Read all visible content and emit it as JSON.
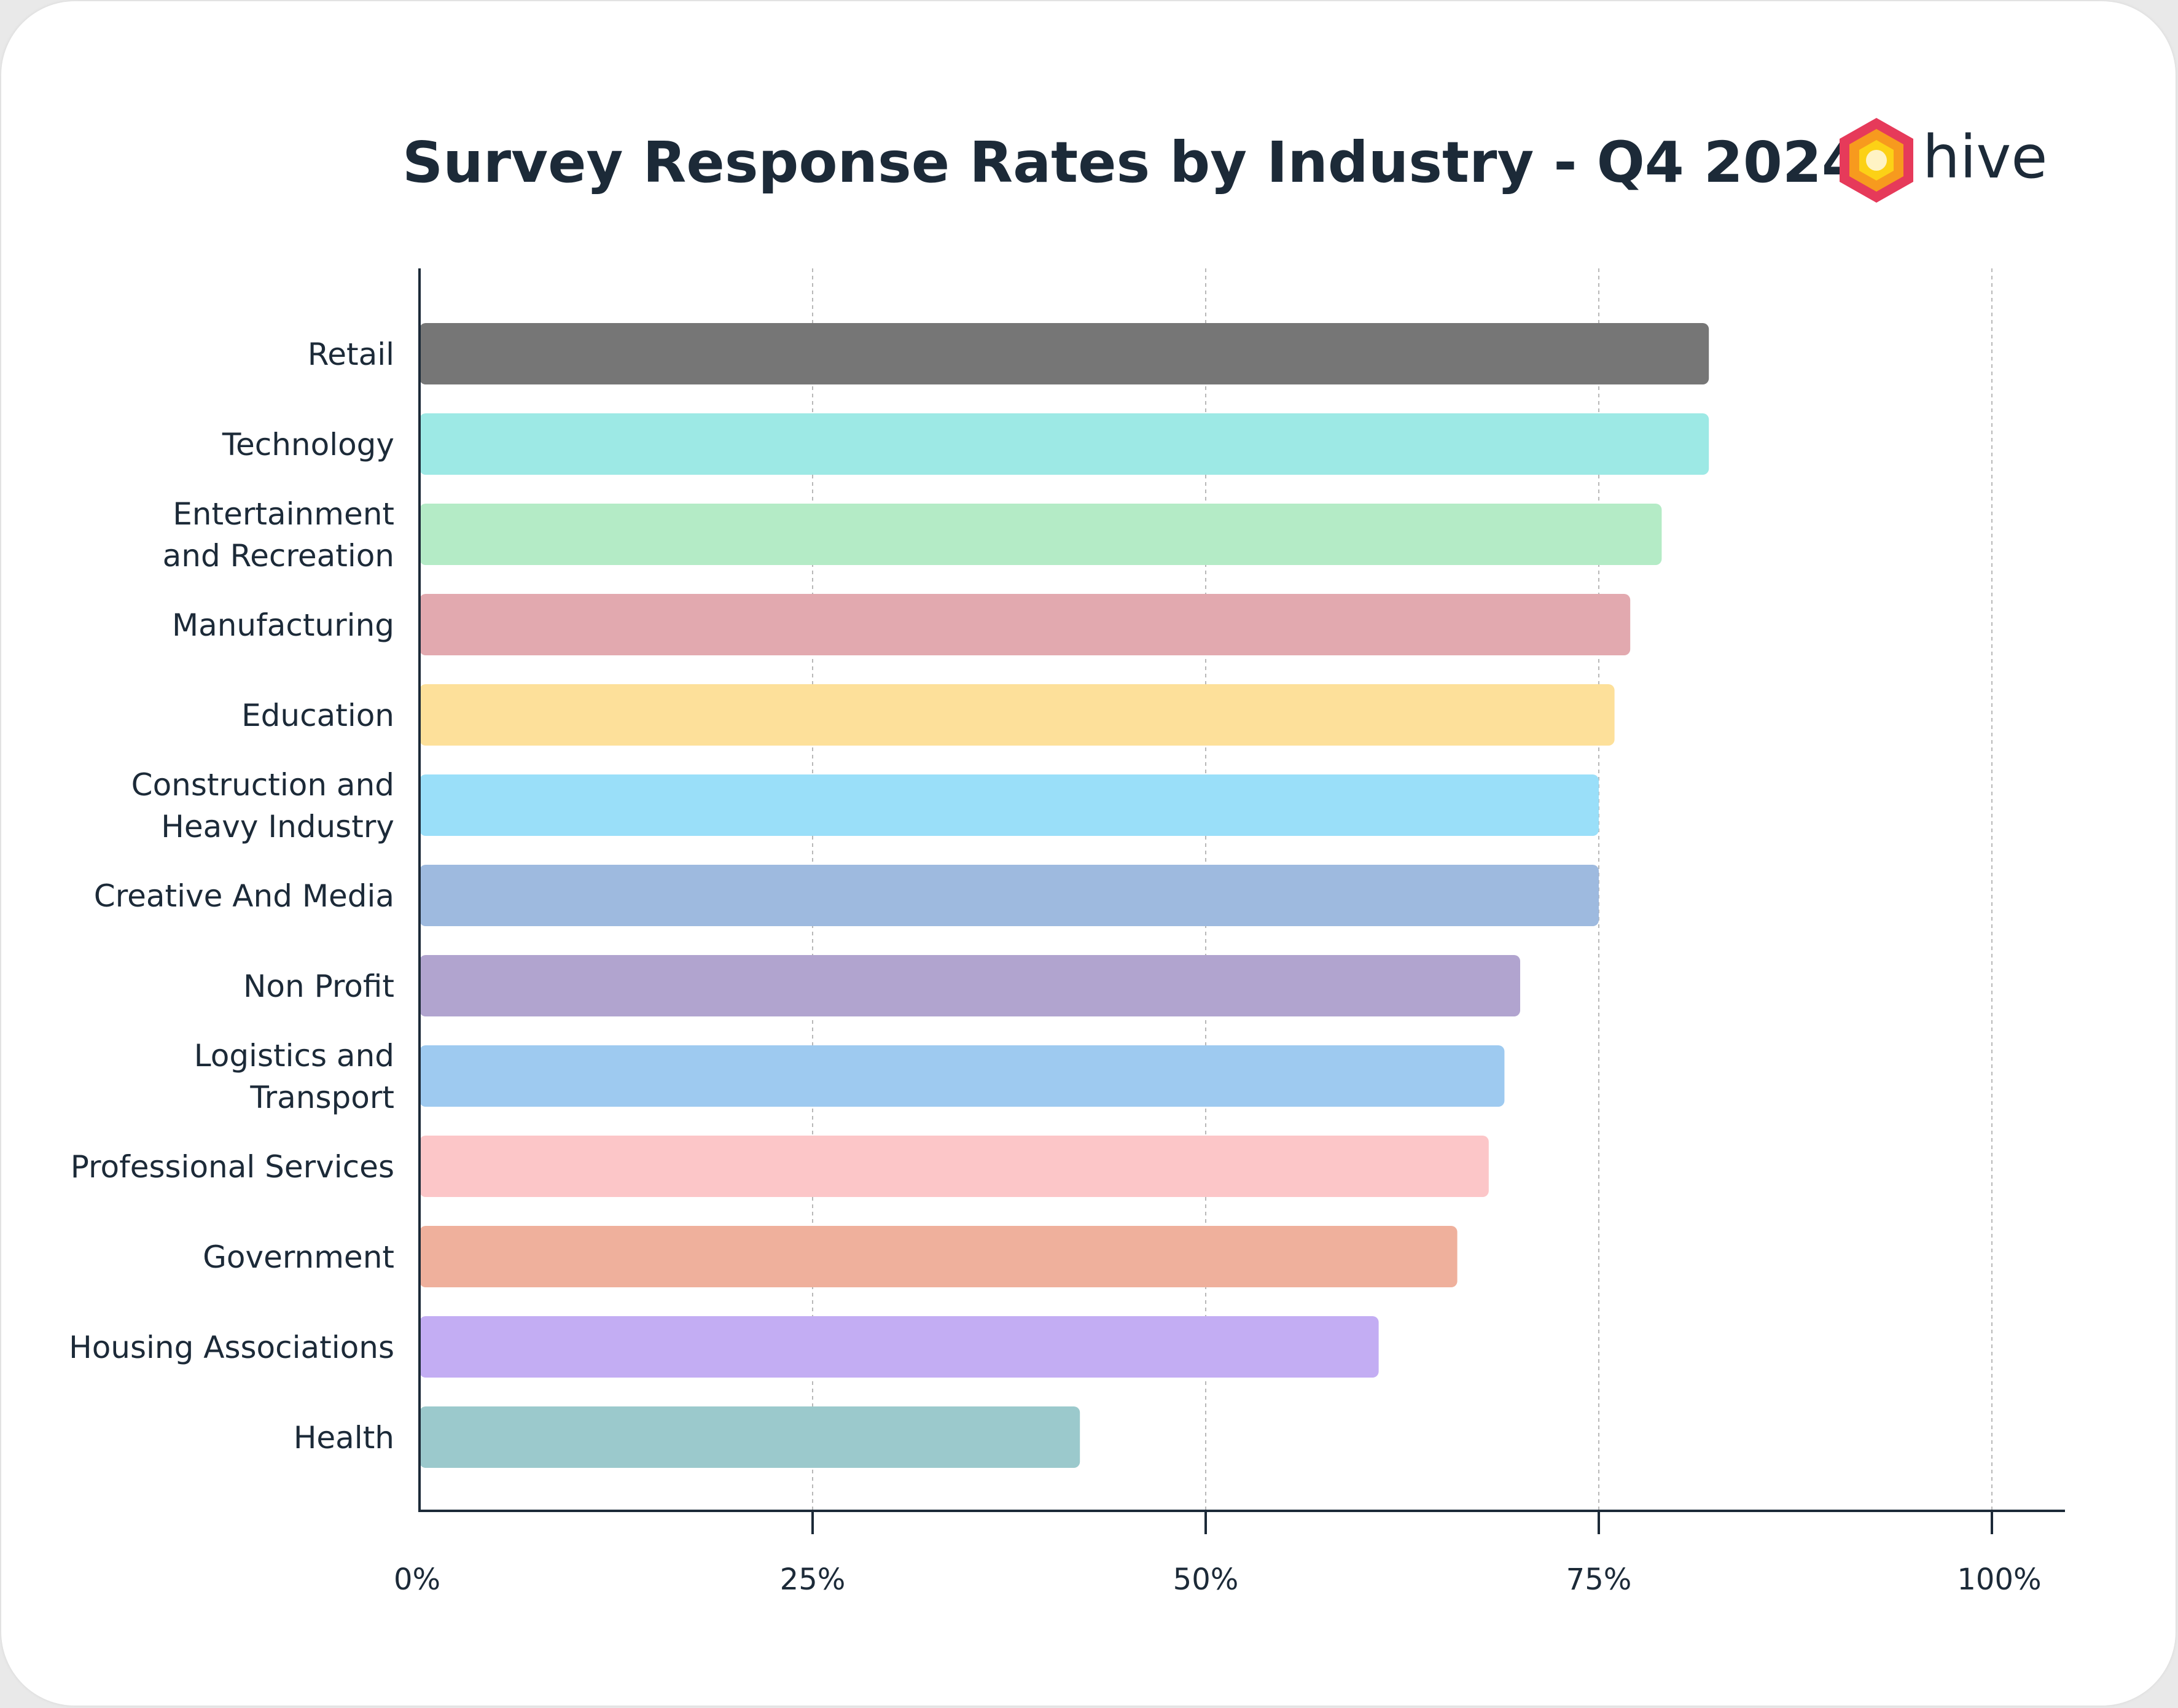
{
  "header": {
    "title": "Survey Response Rates by Industry - Q4 2024",
    "logo_text": "hive"
  },
  "chart_data": {
    "type": "bar",
    "orientation": "horizontal",
    "title": "Survey Response Rates by Industry - Q4 2024",
    "xlabel": "",
    "ylabel": "",
    "xlim": [
      0,
      100
    ],
    "x_ticks": [
      0,
      25,
      50,
      75,
      100
    ],
    "x_tick_labels": [
      "0%",
      "25%",
      "50%",
      "75%",
      "100%"
    ],
    "grid": "vertical-dashed",
    "categories": [
      [
        "Retail"
      ],
      [
        "Technology"
      ],
      [
        "Entertainment",
        "and Recreation"
      ],
      [
        "Manufacturing"
      ],
      [
        "Education"
      ],
      [
        "Construction and",
        "Heavy Industry"
      ],
      [
        "Creative And Media"
      ],
      [
        "Non Profit"
      ],
      [
        "Logistics and",
        "Transport"
      ],
      [
        "Professional Services"
      ],
      [
        "Government"
      ],
      [
        "Housing Associations"
      ],
      [
        "Health"
      ]
    ],
    "values": [
      82,
      82,
      79,
      77,
      76,
      75,
      75,
      70,
      69,
      68,
      66,
      61,
      42
    ],
    "colors": [
      "#767676",
      "#9de9e5",
      "#b4ebc6",
      "#e2a9af",
      "#fde09a",
      "#9adff9",
      "#9ebadf",
      "#b1a4cf",
      "#9ecaf0",
      "#fcc6c8",
      "#efb09c",
      "#c3adf3",
      "#9bc9cc"
    ]
  }
}
